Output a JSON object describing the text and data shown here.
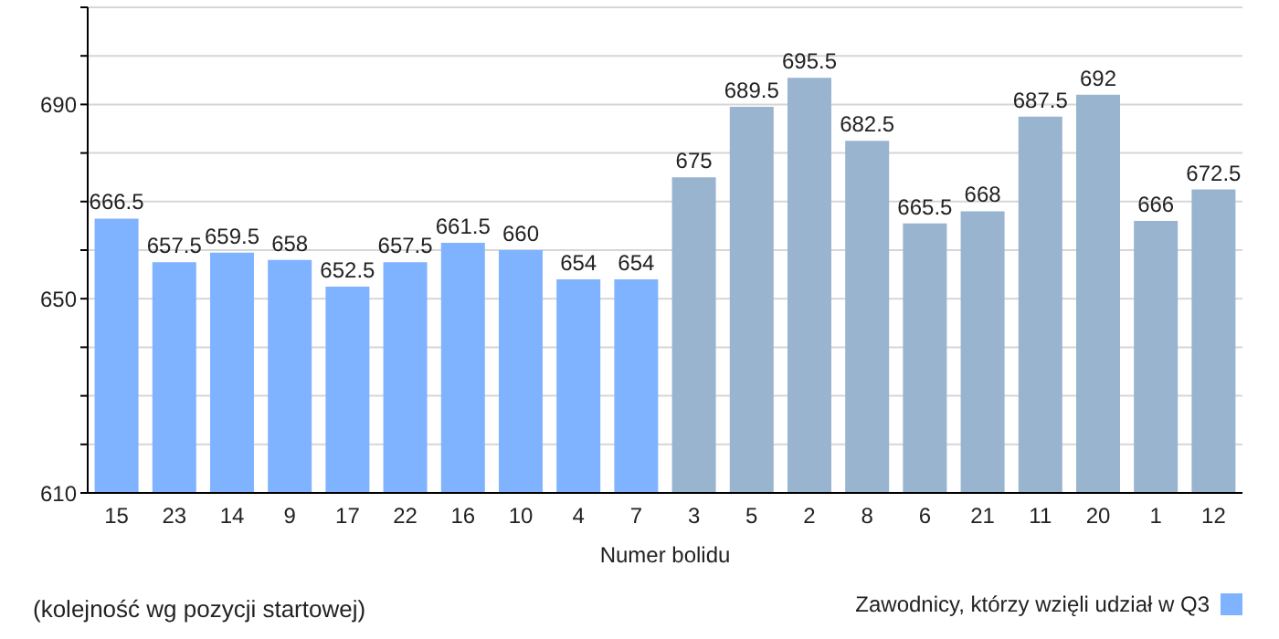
{
  "chart_data": {
    "type": "bar",
    "xlabel": "Numer bolidu",
    "categories": [
      "15",
      "23",
      "14",
      "9",
      "17",
      "22",
      "16",
      "10",
      "4",
      "7",
      "3",
      "5",
      "2",
      "8",
      "6",
      "21",
      "11",
      "20",
      "1",
      "12"
    ],
    "series": [
      {
        "name": "Zawodnicy, którzy wzięli udział w Q3",
        "color": "#80b3ff",
        "values": [
          666.5,
          657.5,
          659.5,
          658,
          652.5,
          657.5,
          661.5,
          660,
          654,
          654,
          null,
          null,
          null,
          null,
          null,
          null,
          null,
          null,
          null,
          null
        ]
      },
      {
        "color": "#98b4cf",
        "values": [
          null,
          null,
          null,
          null,
          null,
          null,
          null,
          null,
          null,
          null,
          675,
          689.5,
          695.5,
          682.5,
          665.5,
          668,
          687.5,
          692,
          666,
          672.5
        ]
      }
    ],
    "stacked": true,
    "ylim": [
      610,
      710
    ],
    "yticks": [
      610,
      {
        "value": 620,
        "label": null
      },
      {
        "value": 630,
        "label": null
      },
      {
        "value": 640,
        "label": null
      },
      650,
      {
        "value": 660,
        "label": null
      },
      {
        "value": 670,
        "label": null
      },
      {
        "value": 680,
        "label": null
      },
      690,
      {
        "value": 700,
        "label": null
      },
      {
        "value": 710,
        "label": null
      }
    ],
    "grid": "y",
    "legend": "bottom right",
    "data_labels": true,
    "annotations": [
      "(kolejność wg pozycji startowej)"
    ]
  }
}
